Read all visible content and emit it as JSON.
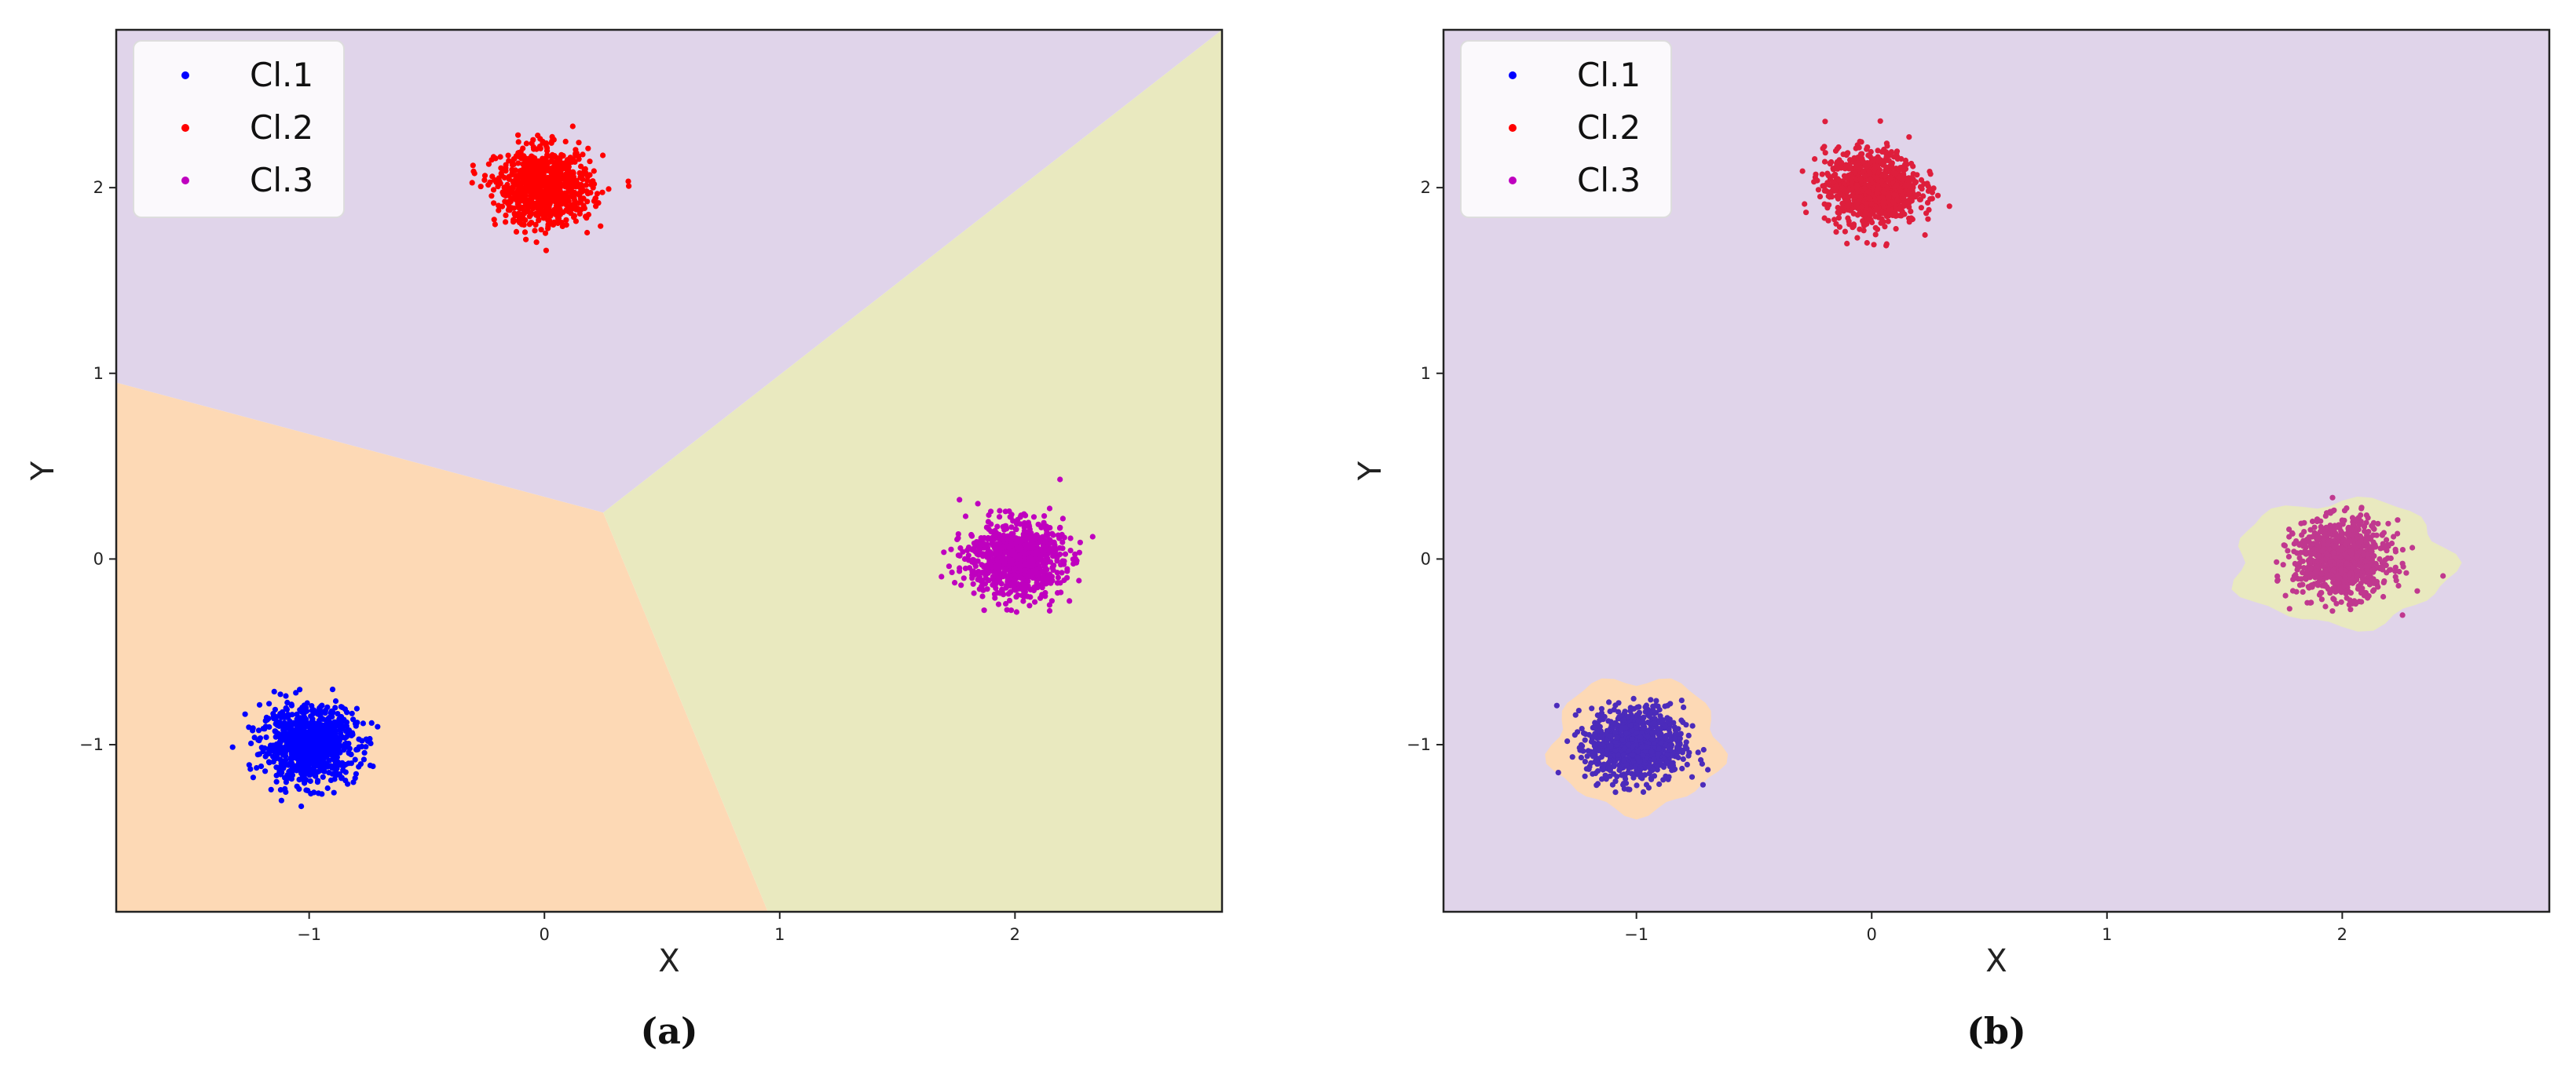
{
  "chart_data": [
    {
      "type": "scatter",
      "panel_label": "(a)",
      "xlabel": "X",
      "ylabel": "Y",
      "xlim": [
        -1.82,
        2.88
      ],
      "ylim": [
        -1.9,
        2.85
      ],
      "xticks": [
        -1,
        0,
        1,
        2
      ],
      "yticks": [
        -1,
        0,
        1,
        2
      ],
      "grid": false,
      "legend": {
        "position": "top-left",
        "entries": [
          "Cl.1",
          "Cl.2",
          "Cl.3"
        ]
      },
      "series": [
        {
          "name": "Cl.1",
          "color": "#0000ff",
          "center": [
            -1,
            -1
          ],
          "spread": 0.1,
          "points": 900
        },
        {
          "name": "Cl.2",
          "color": "#ff0000",
          "center": [
            0,
            2
          ],
          "spread": 0.1,
          "points": 900
        },
        {
          "name": "Cl.3",
          "color": "#bf00bf",
          "center": [
            2,
            0
          ],
          "spread": 0.1,
          "points": 900
        }
      ],
      "decision_regions": {
        "kind": "linear",
        "vertex": [
          0.25,
          0.25
        ],
        "boundary_ends": [
          [
            -1.82,
            0.95
          ],
          [
            0.95,
            -1.9
          ],
          [
            2.88,
            2.85
          ]
        ],
        "colors": {
          "Cl.1": "#fdd9b5",
          "Cl.2": "#e0d4ea",
          "Cl.3": "#e9e9bf"
        }
      }
    },
    {
      "type": "scatter",
      "panel_label": "(b)",
      "xlabel": "X",
      "ylabel": "Y",
      "xlim": [
        -1.82,
        2.88
      ],
      "ylim": [
        -1.9,
        2.85
      ],
      "xticks": [
        -1,
        0,
        1,
        2
      ],
      "yticks": [
        -1,
        0,
        1,
        2
      ],
      "grid": false,
      "legend": {
        "position": "top-left",
        "entries": [
          "Cl.1",
          "Cl.2",
          "Cl.3"
        ]
      },
      "series": [
        {
          "name": "Cl.1",
          "color": "#4b2bbb",
          "center": [
            -1,
            -1
          ],
          "spread": 0.1,
          "points": 900
        },
        {
          "name": "Cl.2",
          "color": "#de1e3c",
          "center": [
            0,
            2
          ],
          "spread": 0.1,
          "points": 900
        },
        {
          "name": "Cl.3",
          "color": "#c0388f",
          "center": [
            2,
            0
          ],
          "spread": 0.1,
          "points": 900
        }
      ],
      "legend_colors": [
        "#0000ff",
        "#ff0000",
        "#bf00bf"
      ],
      "decision_regions": {
        "kind": "blobs",
        "background": "#e0d4ea",
        "islands": [
          {
            "class": "Cl.1",
            "center": [
              -1,
              -1
            ],
            "radius": [
              0.36,
              0.36
            ],
            "color": "#fdd9b5"
          },
          {
            "class": "Cl.3",
            "center": [
              2,
              -0.02
            ],
            "radius": [
              0.46,
              0.34
            ],
            "color": "#e9e9bf"
          }
        ]
      }
    }
  ]
}
